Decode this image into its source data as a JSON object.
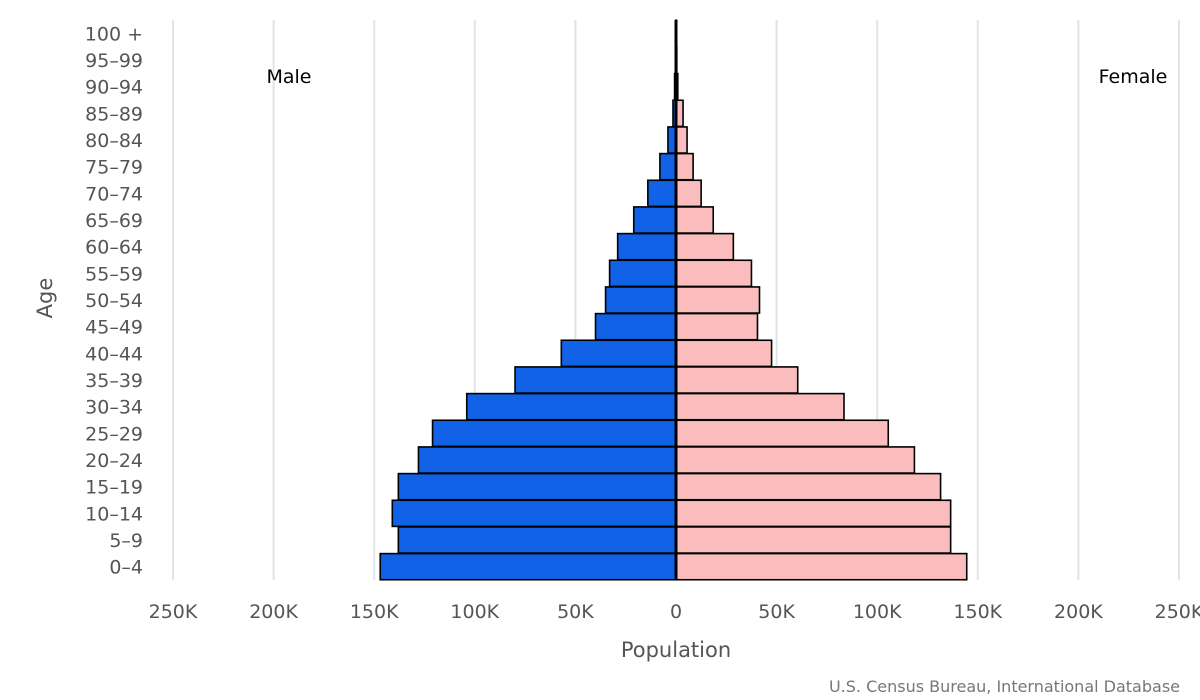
{
  "chart_data": {
    "type": "bar",
    "orientation": "horizontal-population-pyramid",
    "categories": [
      "100 +",
      "95-99",
      "90-94",
      "85-89",
      "80-84",
      "75-79",
      "70-74",
      "65-69",
      "60-64",
      "55-59",
      "50-54",
      "45-49",
      "40-44",
      "35-39",
      "30-34",
      "25-29",
      "20-24",
      "15-19",
      "10-14",
      "5-9",
      "0-4"
    ],
    "series": [
      {
        "name": "Male",
        "color": "#1162e6",
        "values": [
          100,
          300,
          700,
          1500,
          4000,
          8000,
          14000,
          21000,
          29000,
          33000,
          35000,
          40000,
          57000,
          80000,
          104000,
          121000,
          128000,
          138000,
          141000,
          138000,
          147000
        ]
      },
      {
        "name": "Female",
        "color": "#fbbcbd",
        "values": [
          150,
          400,
          900,
          3500,
          5500,
          8500,
          12500,
          18500,
          28500,
          37500,
          41500,
          40500,
          47500,
          60500,
          83500,
          105500,
          118500,
          131500,
          136500,
          136500,
          144500
        ]
      }
    ],
    "xlabel": "Population",
    "ylabel": "Age",
    "xlim": [
      -250000,
      250000
    ],
    "xticks": [
      -250000,
      -200000,
      -150000,
      -100000,
      -50000,
      0,
      50000,
      100000,
      150000,
      200000,
      250000
    ],
    "xtick_labels": [
      "250K",
      "200K",
      "150K",
      "100K",
      "50K",
      "0",
      "50K",
      "100K",
      "150K",
      "200K",
      "250K"
    ],
    "legend": {
      "left_label": "Male",
      "right_label": "Female",
      "placement": "top"
    },
    "grid": true
  },
  "source": "U.S. Census Bureau, International Database"
}
